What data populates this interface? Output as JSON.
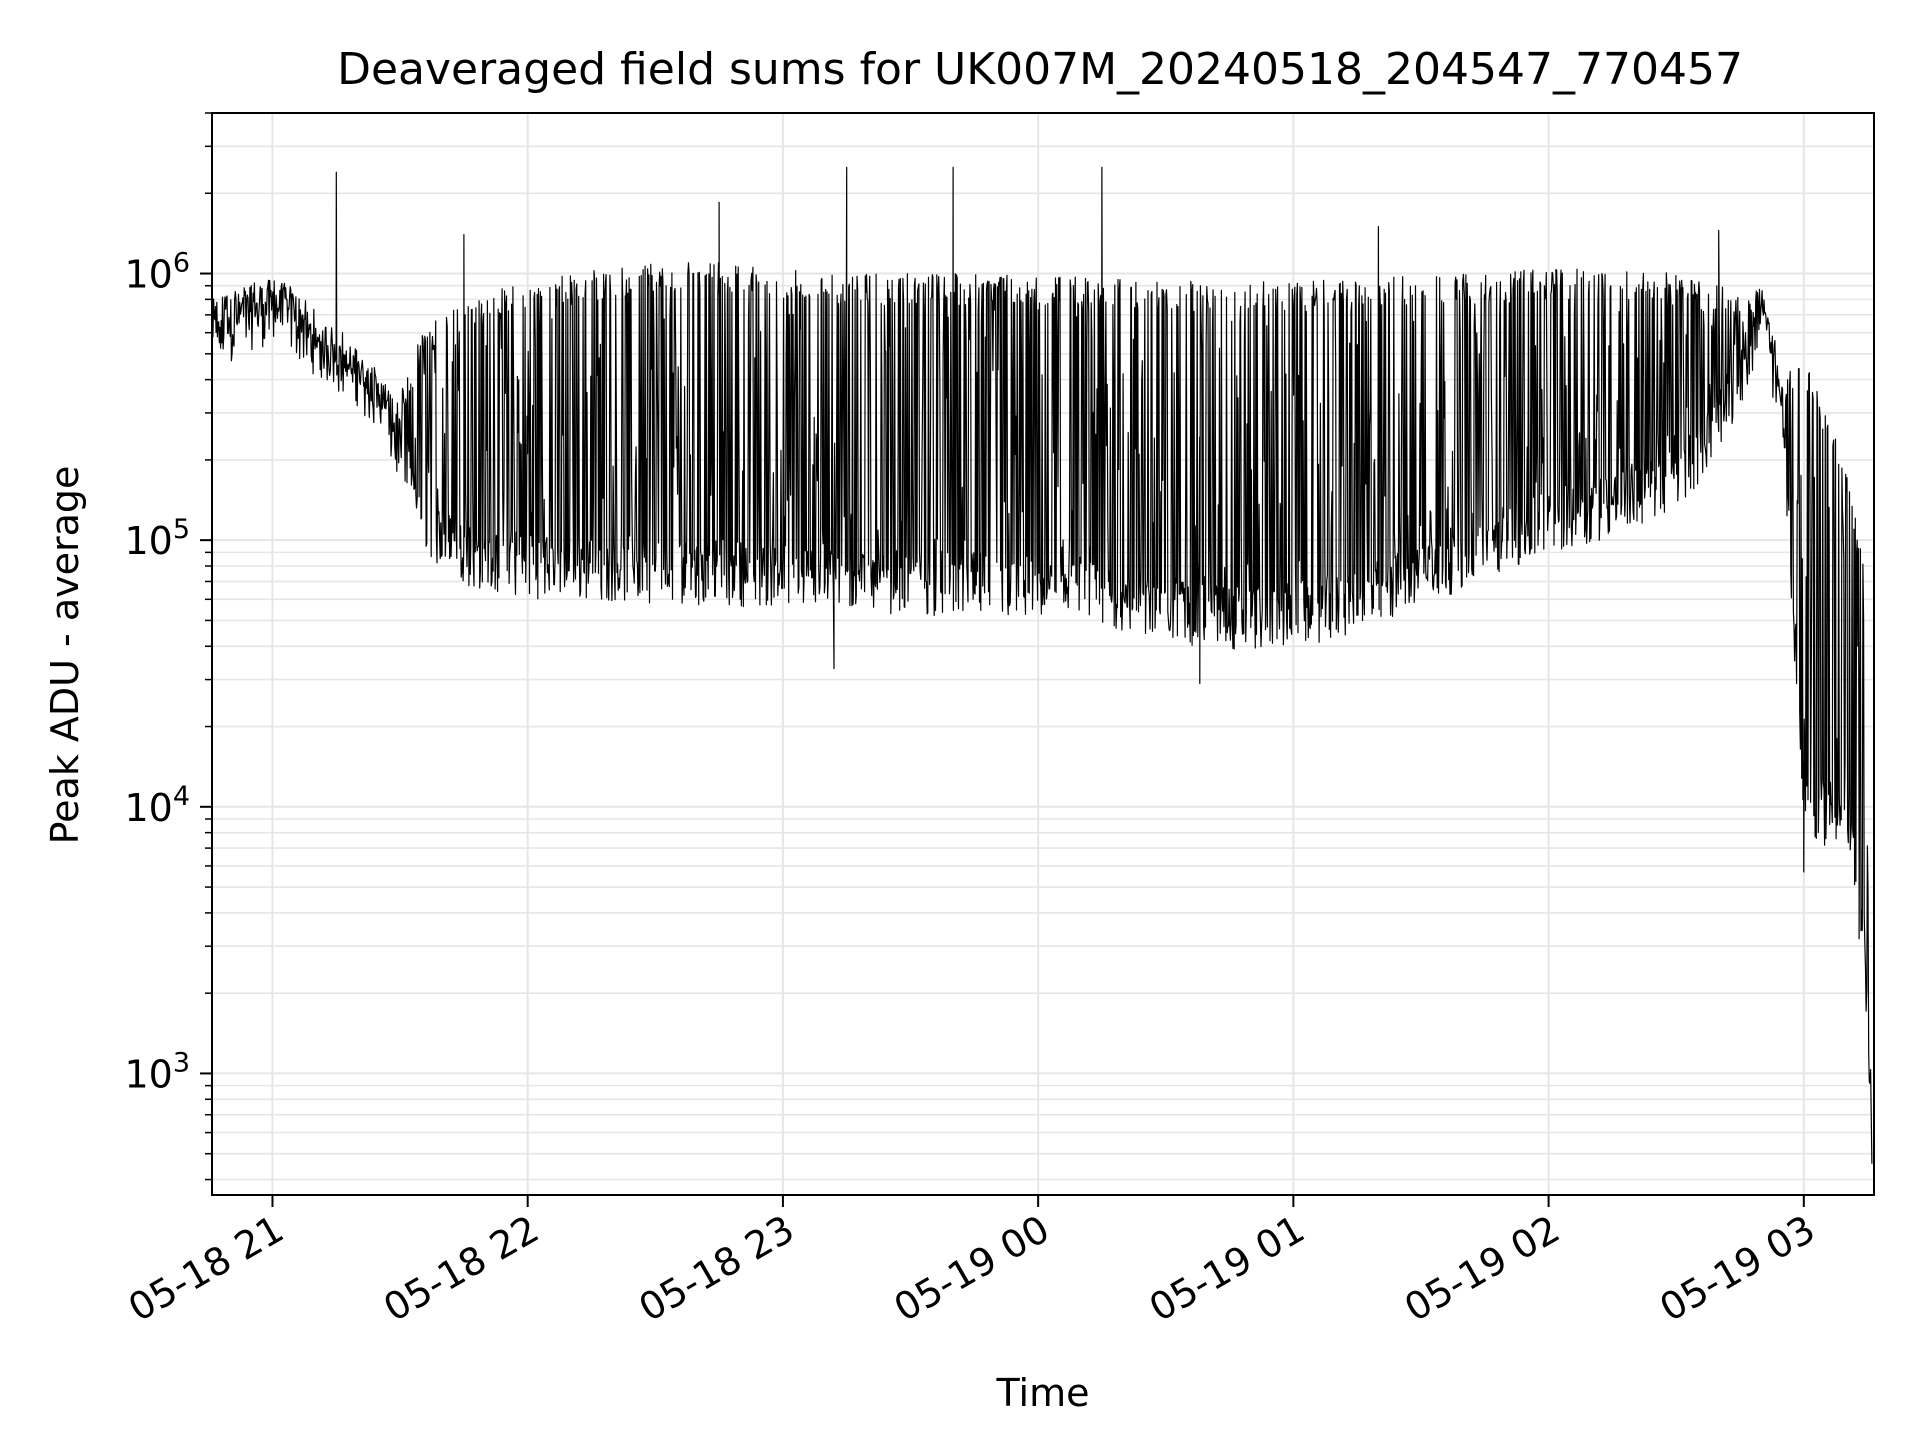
{
  "chart_data": {
    "type": "line",
    "title": "Deaveraged field sums for UK007M_20240518_204547_770457",
    "xlabel": "Time",
    "ylabel": "Peak ADU - average",
    "yscale": "log",
    "ylim": [
      350,
      4000000
    ],
    "xlim": [
      "2024-05-18 20:45:47",
      "2024-05-19 03:16:30"
    ],
    "grid": true,
    "line_color": "#000000",
    "grid_color": "#e6e6e6",
    "x_ticks": [
      {
        "value": "2024-05-18 21:00",
        "label": "05-18 21"
      },
      {
        "value": "2024-05-18 22:00",
        "label": "05-18 22"
      },
      {
        "value": "2024-05-18 23:00",
        "label": "05-18 23"
      },
      {
        "value": "2024-05-19 00:00",
        "label": "05-19 00"
      },
      {
        "value": "2024-05-19 01:00",
        "label": "05-19 01"
      },
      {
        "value": "2024-05-19 02:00",
        "label": "05-19 02"
      },
      {
        "value": "2024-05-19 03:00",
        "label": "05-19 03"
      }
    ],
    "y_ticks": [
      {
        "value": 1000,
        "base": "10",
        "exp": "3"
      },
      {
        "value": 10000,
        "base": "10",
        "exp": "4"
      },
      {
        "value": 100000,
        "base": "10",
        "exp": "5"
      },
      {
        "value": 1000000,
        "base": "10",
        "exp": "6"
      }
    ],
    "series": [
      {
        "x": [
          "2024-05-18 20:46",
          "2024-05-18 20:50",
          "2024-05-18 20:55",
          "2024-05-18 21:00",
          "2024-05-18 21:05",
          "2024-05-18 21:10",
          "2024-05-18 21:15",
          "2024-05-18 21:20",
          "2024-05-18 21:25",
          "2024-05-18 21:30",
          "2024-05-18 21:35",
          "2024-05-18 21:40",
          "2024-05-18 21:45",
          "2024-05-18 21:50",
          "2024-05-18 21:55",
          "2024-05-18 22:00",
          "2024-05-18 22:10",
          "2024-05-18 22:20",
          "2024-05-18 22:30",
          "2024-05-18 22:40",
          "2024-05-18 22:50",
          "2024-05-18 23:00",
          "2024-05-18 23:15",
          "2024-05-18 23:30",
          "2024-05-18 23:45",
          "2024-05-19 00:00",
          "2024-05-19 00:15",
          "2024-05-19 00:30",
          "2024-05-19 00:45",
          "2024-05-19 01:00",
          "2024-05-19 01:15",
          "2024-05-19 01:30",
          "2024-05-19 01:45",
          "2024-05-19 02:00",
          "2024-05-19 02:15",
          "2024-05-19 02:30",
          "2024-05-19 02:40",
          "2024-05-19 02:45",
          "2024-05-19 02:50",
          "2024-05-19 02:55",
          "2024-05-19 03:00",
          "2024-05-19 03:05",
          "2024-05-19 03:10",
          "2024-05-19 03:14",
          "2024-05-19 03:16"
        ],
        "baseline": [
          500000,
          580000,
          650000,
          680000,
          620000,
          520000,
          450000,
          400000,
          300000,
          200000,
          120000,
          95000,
          85000,
          80000,
          78000,
          76000,
          75000,
          74000,
          73000,
          72000,
          71000,
          70000,
          68000,
          66000,
          64000,
          62000,
          58000,
          52000,
          48000,
          50000,
          55000,
          70000,
          90000,
          110000,
          130000,
          160000,
          260000,
          400000,
          650000,
          300000,
          10000,
          9000,
          9500,
          3500,
          500
        ],
        "upper_envelope": [
          800000,
          900000,
          950000,
          950000,
          900000,
          650000,
          550000,
          500000,
          420000,
          350000,
          600000,
          700000,
          800000,
          850000,
          900000,
          950000,
          1000000,
          1050000,
          1100000,
          1100000,
          1100000,
          1050000,
          1000000,
          1000000,
          1000000,
          1000000,
          950000,
          950000,
          950000,
          950000,
          950000,
          1000000,
          1000000,
          1050000,
          1050000,
          1000000,
          900000,
          850000,
          900000,
          400000,
          500000,
          300000,
          200000,
          80000,
          500
        ],
        "spikes": [
          {
            "x": "2024-05-18 21:15",
            "y": 2400000
          },
          {
            "x": "2024-05-18 21:45",
            "y": 1400000
          },
          {
            "x": "2024-05-18 22:45",
            "y": 1850000
          },
          {
            "x": "2024-05-18 23:15",
            "y": 2500000
          },
          {
            "x": "2024-05-18 23:40",
            "y": 2500000
          },
          {
            "x": "2024-05-19 00:15",
            "y": 2500000
          },
          {
            "x": "2024-05-19 01:20",
            "y": 1500000
          },
          {
            "x": "2024-05-19 02:40",
            "y": 1450000
          }
        ],
        "minimum_dips": [
          {
            "x": "2024-05-19 00:38",
            "y": 29000
          },
          {
            "x": "2024-05-18 23:12",
            "y": 33000
          },
          {
            "x": "2024-05-19 03:00",
            "y": 5700
          },
          {
            "x": "2024-05-19 03:13",
            "y": 3200
          }
        ]
      }
    ]
  }
}
